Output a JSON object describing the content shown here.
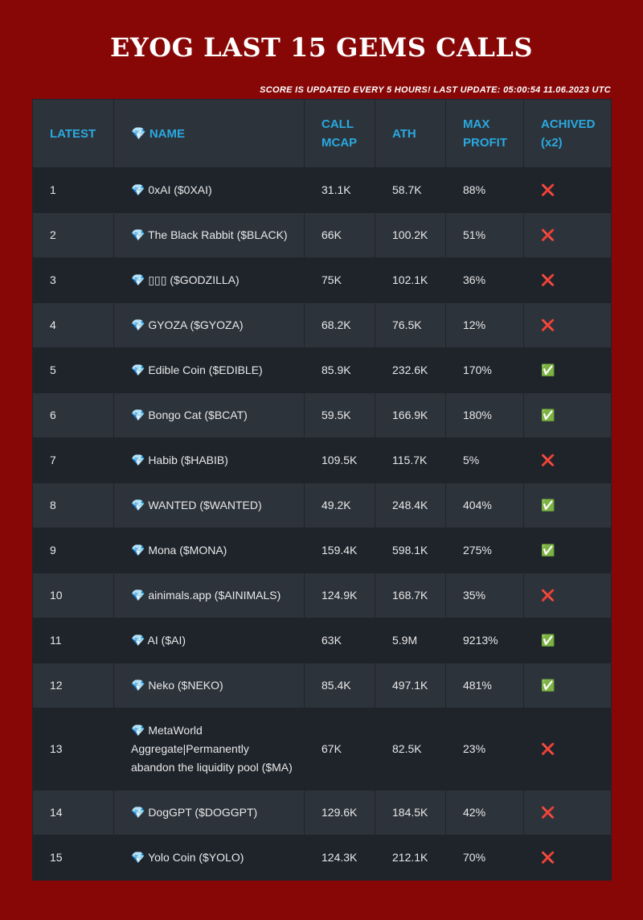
{
  "header": {
    "title": "EYOG LAST 15 GEMS CALLS",
    "subtitle": "SCORE IS UPDATED EVERY 5 HOURS! LAST UPDATE: 05:00:54 11.06.2023 UTC"
  },
  "table": {
    "columns": [
      "LATEST",
      "💎 NAME",
      "CALL MCAP",
      "ATH",
      "MAX PROFIT",
      "ACHIVED (x2)"
    ],
    "rows": [
      [
        "1",
        "💎 0xAI ($0XAI)",
        "31.1K",
        "58.7K",
        "88%",
        "❌"
      ],
      [
        "2",
        "💎 The Black Rabbit ($BLACK)",
        "66K",
        "100.2K",
        "51%",
        "❌"
      ],
      [
        "3",
        "💎 ▯▯▯ ($GODZILLA)",
        "75K",
        "102.1K",
        "36%",
        "❌"
      ],
      [
        "4",
        "💎 GYOZA ($GYOZA)",
        "68.2K",
        "76.5K",
        "12%",
        "❌"
      ],
      [
        "5",
        "💎 Edible Coin ($EDIBLE)",
        "85.9K",
        "232.6K",
        "170%",
        "✅"
      ],
      [
        "6",
        "💎 Bongo Cat ($BCAT)",
        "59.5K",
        "166.9K",
        "180%",
        "✅"
      ],
      [
        "7",
        "💎 Habib ($HABIB)",
        "109.5K",
        "115.7K",
        "5%",
        "❌"
      ],
      [
        "8",
        "💎 WANTED ($WANTED)",
        "49.2K",
        "248.4K",
        "404%",
        "✅"
      ],
      [
        "9",
        "💎 Mona ($MONA)",
        "159.4K",
        "598.1K",
        "275%",
        "✅"
      ],
      [
        "10",
        "💎 ainimals.app ($AINIMALS)",
        "124.9K",
        "168.7K",
        "35%",
        "❌"
      ],
      [
        "11",
        "💎 AI ($AI)",
        "63K",
        "5.9M",
        "9213%",
        "✅"
      ],
      [
        "12",
        "💎 Neko ($NEKO)",
        "85.4K",
        "497.1K",
        "481%",
        "✅"
      ],
      [
        "13",
        "💎 MetaWorld Aggregate|Permanently abandon the liquidity pool ($MA)",
        "67K",
        "82.5K",
        "23%",
        "❌"
      ],
      [
        "14",
        "💎 DogGPT ($DOGGPT)",
        "129.6K",
        "184.5K",
        "42%",
        "❌"
      ],
      [
        "15",
        "💎 Yolo Coin ($YOLO)",
        "124.3K",
        "212.1K",
        "70%",
        "❌"
      ]
    ]
  }
}
